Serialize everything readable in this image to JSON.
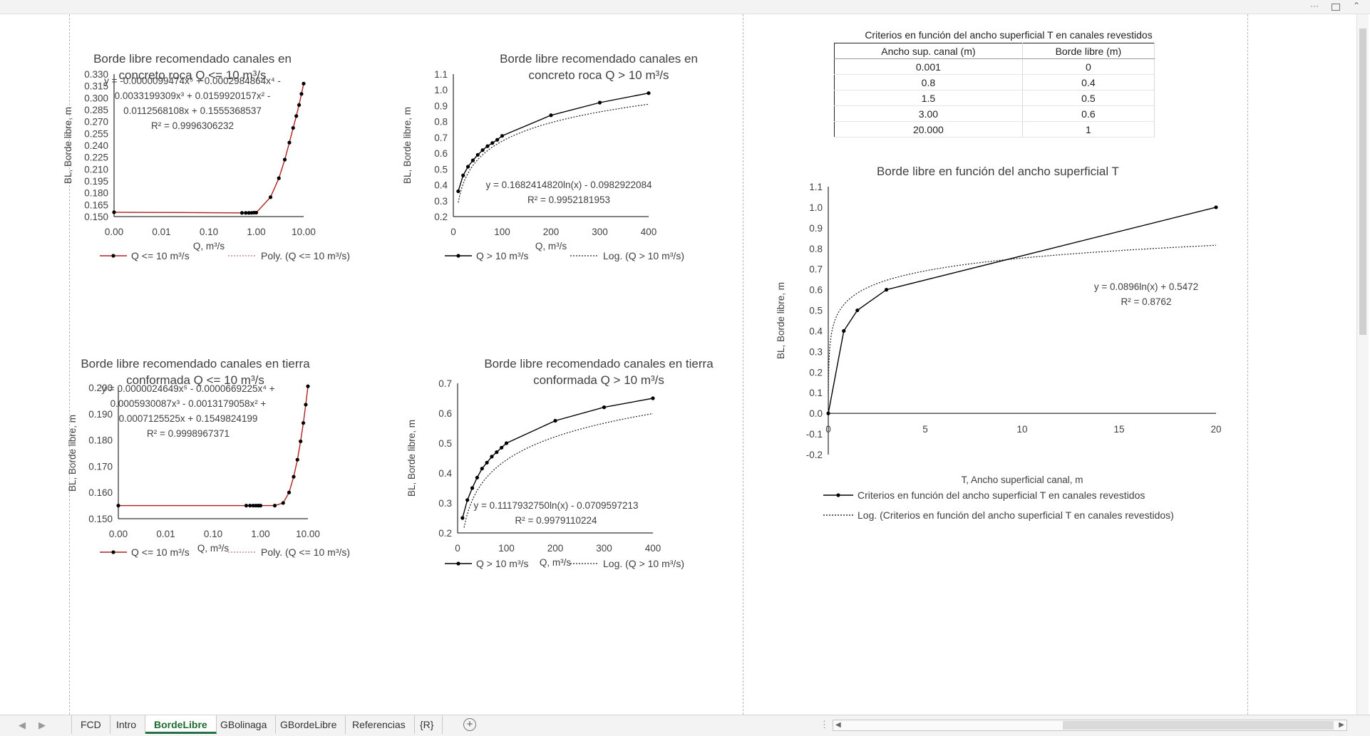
{
  "window": {
    "menu_dots": "···",
    "restore_icon": "restore-icon"
  },
  "criteria_table": {
    "caption": "Criterios en función del ancho superficial T en canales revestidos",
    "headers": [
      "Ancho sup. canal (m)",
      "Borde libre (m)"
    ],
    "rows": [
      [
        "0.001",
        "0"
      ],
      [
        "0.8",
        "0.4"
      ],
      [
        "1.5",
        "0.5"
      ],
      [
        "3.00",
        "0.6"
      ],
      [
        "20.000",
        "1"
      ]
    ]
  },
  "chart_data": [
    {
      "type": "line",
      "title": [
        "Borde libre recomendado canales en",
        "concreto roca Q <= 10 m³/s"
      ],
      "xlabel": "Q, m³/s",
      "ylabel": "BL, Borde libre, m",
      "x_scale": "log",
      "xlim": [
        0.001,
        10
      ],
      "x_ticks": [
        0.001,
        0.01,
        0.1,
        1,
        10
      ],
      "x_tick_labels": [
        "0.00",
        "0.01",
        "0.10",
        "1.00",
        "10.00"
      ],
      "ylim": [
        0.15,
        0.33
      ],
      "y_ticks": [
        0.15,
        0.165,
        0.18,
        0.195,
        0.21,
        0.225,
        0.24,
        0.255,
        0.27,
        0.285,
        0.3,
        0.315,
        0.33
      ],
      "y_tick_labels": [
        "0.150",
        "0.165",
        "0.180",
        "0.195",
        "0.210",
        "0.225",
        "0.240",
        "0.255",
        "0.270",
        "0.285",
        "0.300",
        "0.315",
        "0.330"
      ],
      "equation": [
        "y = -0.0000099474x⁵ + 0.0002984864x⁴ -",
        "0.0033199309x³ + 0.0159920157x² -",
        "0.0112568108x + 0.1555368537",
        "R² = 0.9996306232"
      ],
      "legend": [
        "Q <= 10 m³/s",
        "Poly. (Q <= 10 m³/s)"
      ],
      "series": [
        {
          "name": "Q <= 10 m³/s",
          "x": [
            0.001,
            0.5,
            0.6,
            0.7,
            0.8,
            0.9,
            1,
            2,
            3,
            4,
            5,
            6,
            7,
            8,
            9,
            10
          ],
          "y": [
            0.1555,
            0.1547,
            0.1547,
            0.1547,
            0.1548,
            0.155,
            0.155,
            0.1745,
            0.1985,
            0.222,
            0.2435,
            0.262,
            0.277,
            0.291,
            0.305,
            0.318
          ]
        },
        {
          "name": "Poly. (Q <= 10 m³/s)",
          "x": [
            0.001,
            0.5,
            0.6,
            0.7,
            0.8,
            0.9,
            1,
            2,
            3,
            4,
            5,
            6,
            7,
            8,
            9,
            10
          ],
          "y": [
            0.1555,
            0.1547,
            0.1547,
            0.1547,
            0.1548,
            0.155,
            0.155,
            0.1745,
            0.1985,
            0.222,
            0.2435,
            0.262,
            0.277,
            0.291,
            0.305,
            0.318
          ]
        }
      ]
    },
    {
      "type": "line",
      "title": [
        "Borde libre recomendado canales en",
        "concreto roca Q > 10 m³/s"
      ],
      "xlabel": "Q, m³/s",
      "ylabel": "BL, Borde libre, m",
      "x_scale": "linear",
      "xlim": [
        0,
        400
      ],
      "x_ticks": [
        0,
        100,
        200,
        300,
        400
      ],
      "x_tick_labels": [
        "0",
        "100",
        "200",
        "300",
        "400"
      ],
      "ylim": [
        0.2,
        1.1
      ],
      "y_ticks": [
        0.2,
        0.3,
        0.4,
        0.5,
        0.6,
        0.7,
        0.8,
        0.9,
        1.0,
        1.1
      ],
      "y_tick_labels": [
        "0.2",
        "0.3",
        "0.4",
        "0.5",
        "0.6",
        "0.7",
        "0.8",
        "0.9",
        "1.0",
        "1.1"
      ],
      "equation": [
        "y = 0.1682414820ln(x) - 0.0982922084",
        "R² = 0.9952181953"
      ],
      "legend": [
        "Q > 10 m³/s",
        "Log. (Q > 10 m³/s)"
      ],
      "series": [
        {
          "name": "Q > 10 m³/s",
          "x": [
            10,
            20,
            30,
            40,
            50,
            60,
            70,
            80,
            90,
            100,
            200,
            300,
            400
          ],
          "y": [
            0.36,
            0.46,
            0.515,
            0.555,
            0.59,
            0.62,
            0.645,
            0.665,
            0.685,
            0.71,
            0.84,
            0.92,
            0.98
          ]
        },
        {
          "name": "Log. (Q > 10 m³/s)",
          "a": 0.168241482,
          "b": -0.0982922084,
          "x_range": [
            10,
            400
          ]
        }
      ]
    },
    {
      "type": "line",
      "title": [
        "Borde libre recomendado canales en tierra",
        "conformada Q <= 10 m³/s"
      ],
      "xlabel": "Q, m³/s",
      "ylabel": "BL, Borde libre, m",
      "x_scale": "log",
      "xlim": [
        0.001,
        10
      ],
      "x_ticks": [
        0.001,
        0.01,
        0.1,
        1,
        10
      ],
      "x_tick_labels": [
        "0.00",
        "0.01",
        "0.10",
        "1.00",
        "10.00"
      ],
      "ylim": [
        0.15,
        0.2
      ],
      "y_ticks": [
        0.15,
        0.16,
        0.17,
        0.18,
        0.19,
        0.2
      ],
      "y_tick_labels": [
        "0.150",
        "0.160",
        "0.170",
        "0.180",
        "0.190",
        "0.200"
      ],
      "equation": [
        "y = 0.0000024649x⁵ - 0.0000669225x⁴ +",
        "0.0005930087x³ - 0.0013179058x² +",
        "0.0007125525x + 0.1549824199",
        "R² = 0.9998967371"
      ],
      "legend": [
        "Q <= 10 m³/s",
        "Poly. (Q <= 10 m³/s)"
      ],
      "series": [
        {
          "name": "Q <= 10 m³/s",
          "x": [
            0.001,
            0.5,
            0.6,
            0.7,
            0.8,
            0.9,
            1,
            2,
            3,
            4,
            5,
            6,
            7,
            8,
            9,
            10
          ],
          "y": [
            0.155,
            0.155,
            0.155,
            0.155,
            0.155,
            0.155,
            0.155,
            0.155,
            0.156,
            0.16,
            0.166,
            0.1725,
            0.1795,
            0.1865,
            0.1935,
            0.2005
          ]
        },
        {
          "name": "Poly. (Q <= 10 m³/s)",
          "x": [
            0.001,
            0.5,
            0.6,
            0.7,
            0.8,
            0.9,
            1,
            2,
            3,
            4,
            5,
            6,
            7,
            8,
            9,
            10
          ],
          "y": [
            0.155,
            0.155,
            0.155,
            0.155,
            0.155,
            0.155,
            0.155,
            0.155,
            0.156,
            0.16,
            0.166,
            0.1725,
            0.1795,
            0.1865,
            0.1935,
            0.2005
          ]
        }
      ]
    },
    {
      "type": "line",
      "title": [
        "Borde libre recomendado canales en tierra",
        "conformada Q > 10 m³/s"
      ],
      "xlabel": "Q, m³/s",
      "ylabel": "BL, Borde libre, m",
      "x_scale": "linear",
      "xlim": [
        0,
        400
      ],
      "x_ticks": [
        0,
        100,
        200,
        300,
        400
      ],
      "x_tick_labels": [
        "0",
        "100",
        "200",
        "300",
        "400"
      ],
      "ylim": [
        0.2,
        0.7
      ],
      "y_ticks": [
        0.2,
        0.3,
        0.4,
        0.5,
        0.6,
        0.7
      ],
      "y_tick_labels": [
        "0.2",
        "0.3",
        "0.4",
        "0.5",
        "0.6",
        "0.7"
      ],
      "equation": [
        "y = 0.1117932750ln(x) - 0.0709597213",
        "R² = 0.9979110224"
      ],
      "legend": [
        "Q > 10 m³/s",
        "Log. (Q > 10 m³/s)"
      ],
      "series": [
        {
          "name": "Q > 10 m³/s",
          "x": [
            10,
            20,
            30,
            40,
            50,
            60,
            70,
            80,
            90,
            100,
            200,
            300,
            400
          ],
          "y": [
            0.25,
            0.31,
            0.35,
            0.385,
            0.415,
            0.435,
            0.455,
            0.47,
            0.485,
            0.5,
            0.575,
            0.62,
            0.65
          ]
        },
        {
          "name": "Log. (Q > 10 m³/s)",
          "a": 0.111793275,
          "b": -0.0709597213,
          "x_range": [
            10,
            400
          ]
        }
      ]
    },
    {
      "type": "line",
      "title": [
        "Borde libre en función del ancho superficial T"
      ],
      "xlabel": "T, Ancho superficial canal, m",
      "ylabel": "BL, Borde libre, m",
      "x_scale": "linear",
      "xlim": [
        0,
        20
      ],
      "x_ticks": [
        0,
        5,
        10,
        15,
        20
      ],
      "x_tick_labels": [
        "0",
        "5",
        "10",
        "15",
        "20"
      ],
      "ylim": [
        -0.2,
        1.1
      ],
      "y_ticks": [
        -0.2,
        -0.1,
        0.0,
        0.1,
        0.2,
        0.3,
        0.4,
        0.5,
        0.6,
        0.7,
        0.8,
        0.9,
        1.0,
        1.1
      ],
      "y_tick_labels": [
        "-0.2",
        "-0.1",
        "0.0",
        "0.1",
        "0.2",
        "0.3",
        "0.4",
        "0.5",
        "0.6",
        "0.7",
        "0.8",
        "0.9",
        "1.0",
        "1.1"
      ],
      "equation": [
        "y = 0.0896ln(x) + 0.5472",
        "R² = 0.8762"
      ],
      "legend": [
        "Criterios en función del ancho superficial T en canales revestidos",
        "Log. (Criterios en función del ancho superficial T en canales revestidos)"
      ],
      "series": [
        {
          "name": "Criterios en función del ancho superficial T en canales revestidos",
          "x": [
            0.001,
            0.8,
            1.5,
            3.0,
            20.0
          ],
          "y": [
            0,
            0.4,
            0.5,
            0.6,
            1.0
          ]
        },
        {
          "name": "Log. (Criterios en función del ancho superficial T en canales revestidos)",
          "a": 0.0896,
          "b": 0.5472,
          "x_range": [
            0.001,
            20
          ]
        }
      ]
    }
  ],
  "sheet_tabs": {
    "nav_prev": "◀",
    "nav_next": "▶",
    "tabs": [
      "FCD",
      "Intro",
      "BordeLibre",
      "GBolinaga",
      "GBordeLibre",
      "Referencias",
      "{R}"
    ],
    "active": "BordeLibre",
    "add_label": "+"
  }
}
